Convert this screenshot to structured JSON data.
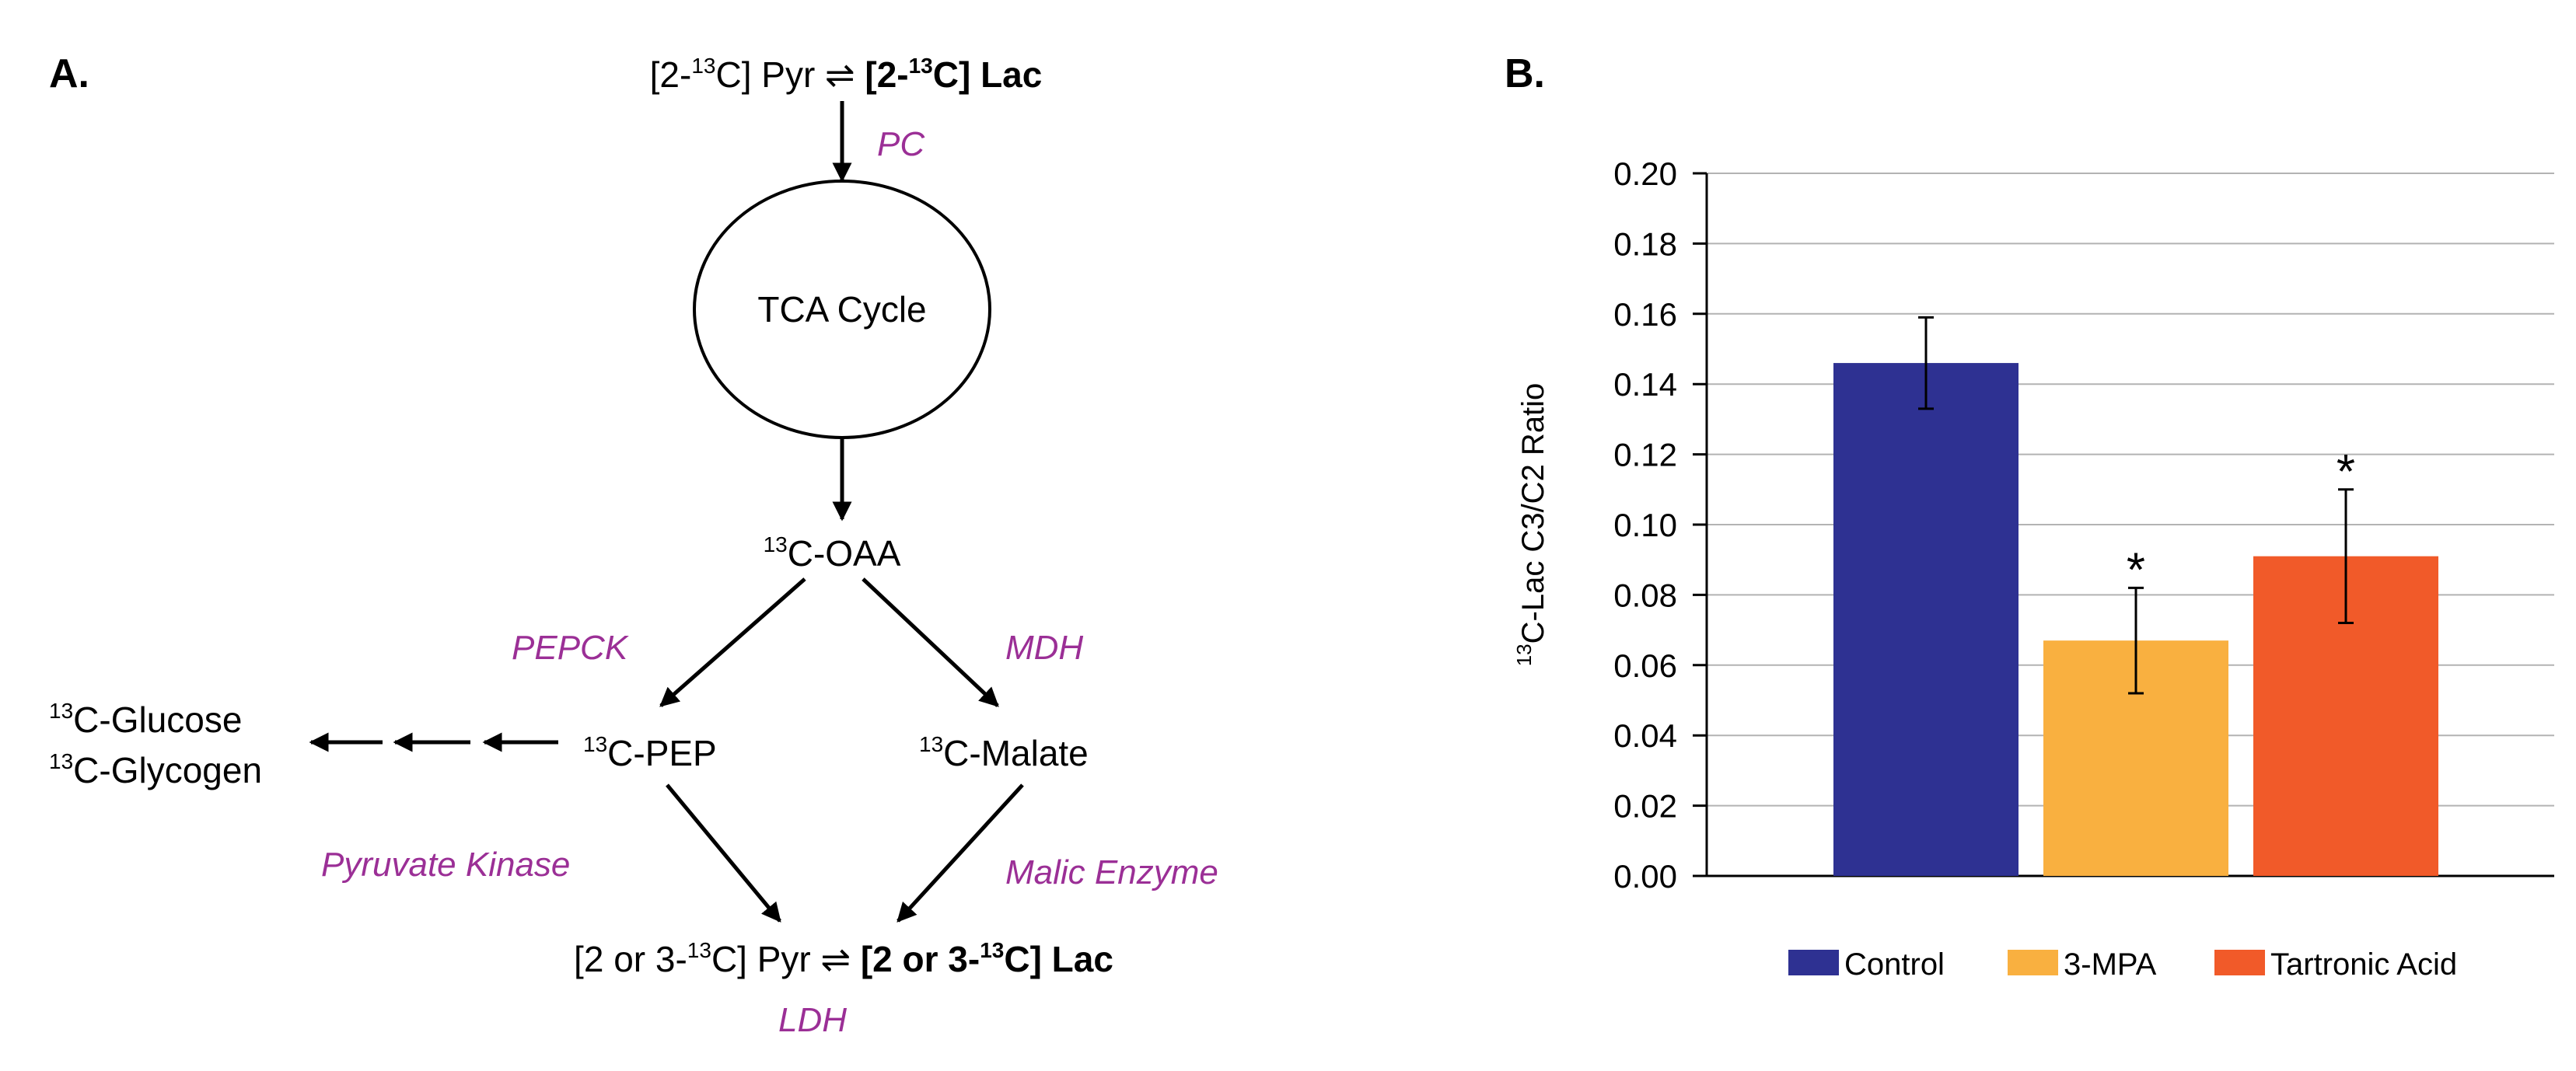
{
  "panel_a": {
    "label": "A.",
    "top": {
      "pre": "[2-",
      "sup1": "13",
      "mid": "C] Pyr ⇌ ",
      "bold_pre": "[2-",
      "sup2": "13",
      "bold_post": "C] Lac"
    },
    "pc": "PC",
    "tca": "TCA Cycle",
    "oaa": {
      "sup": "13",
      "text": "C-OAA"
    },
    "pepck": "PEPCK",
    "mdh": "MDH",
    "glucose": {
      "sup": "13",
      "text": "C-Glucose"
    },
    "glycogen": {
      "sup": "13",
      "text": "C-Glycogen"
    },
    "pep": {
      "sup": "13",
      "text": "C-PEP"
    },
    "malate": {
      "sup": "13",
      "text": "C-Malate"
    },
    "pyruvate_kinase": "Pyruvate Kinase",
    "malic_enzyme": "Malic Enzyme",
    "bottom": {
      "pre": "[2 or 3-",
      "sup1": "13",
      "mid": "C] Pyr ⇌ ",
      "bold_pre": "[2 or 3-",
      "sup2": "13",
      "bold_post": "C] Lac"
    },
    "ldh": "LDH"
  },
  "panel_b": {
    "label": "B.",
    "ylabel_sup": "13",
    "ylabel_text": "C-Lac C3/C2 Ratio"
  },
  "colors": {
    "control": "#2e3192",
    "mpa": "#f9b040",
    "tartronic": "#f15a29",
    "enzyme": "#9b2f96",
    "grid": "#b3b3b3"
  },
  "chart_data": {
    "type": "bar",
    "categories": [
      "Control",
      "3-MPA",
      "Tartronic Acid"
    ],
    "values": [
      0.146,
      0.067,
      0.091
    ],
    "errors": [
      0.013,
      0.015,
      0.019
    ],
    "significance": [
      "",
      "*",
      "*"
    ],
    "legend": [
      "Control",
      "3-MPA",
      "Tartronic Acid"
    ],
    "ylim": [
      0,
      0.2
    ],
    "yticks": [
      "0.00",
      "0.02",
      "0.04",
      "0.06",
      "0.08",
      "0.10",
      "0.12",
      "0.14",
      "0.16",
      "0.18",
      "0.20"
    ],
    "grid": true,
    "legend_position": "bottom"
  }
}
